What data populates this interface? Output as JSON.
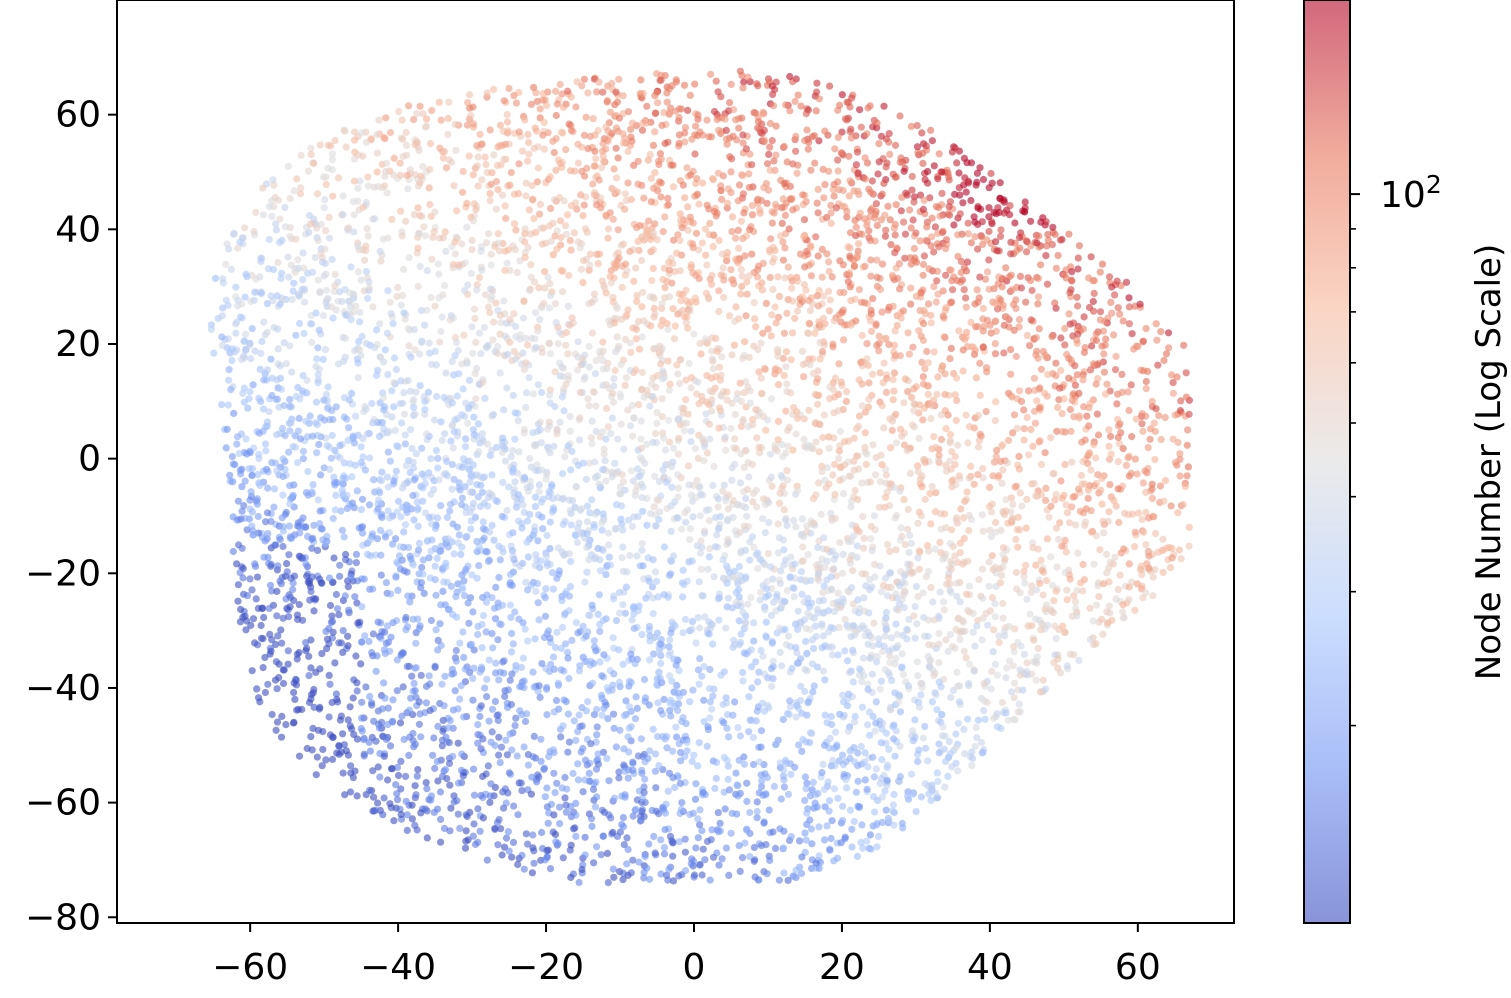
{
  "chart_data": {
    "type": "scatter",
    "title": "",
    "xlabel": "",
    "ylabel": "",
    "xlim": [
      -78,
      73
    ],
    "ylim": [
      -81,
      80
    ],
    "x_ticks": [
      -60,
      -40,
      -20,
      0,
      20,
      40,
      60
    ],
    "x_tick_labels": [
      "−60",
      "−40",
      "−20",
      "0",
      "20",
      "40",
      "60"
    ],
    "y_ticks": [
      -80,
      -60,
      -40,
      -20,
      0,
      20,
      40,
      60
    ],
    "y_tick_labels": [
      "−80",
      "−60",
      "−40",
      "−20",
      "0",
      "20",
      "40",
      "60"
    ],
    "grid": false,
    "colormap": "coolwarm",
    "colormap_stops": [
      "#3b4cc0",
      "#6f92f3",
      "#aac7fd",
      "#dddddd",
      "#f7b89c",
      "#e7745b",
      "#b40426"
    ],
    "point_alpha": 0.6,
    "cloud": {
      "approx_point_count": 7000,
      "center": [
        -2,
        -2
      ],
      "semi_axes": [
        67,
        72
      ],
      "description_of_color": "blue (low node number) toward lower-left, red (high node number) toward upper-right"
    },
    "colorbar": {
      "label": "Node Number (Log Scale)",
      "scale": "log",
      "min": 11,
      "max": 180,
      "major_tick_values": [
        100
      ],
      "major_tick_labels": [
        "10",
        "2"
      ],
      "minor_tick_values": [
        20,
        30,
        40,
        50,
        60,
        70,
        80,
        90
      ]
    }
  }
}
